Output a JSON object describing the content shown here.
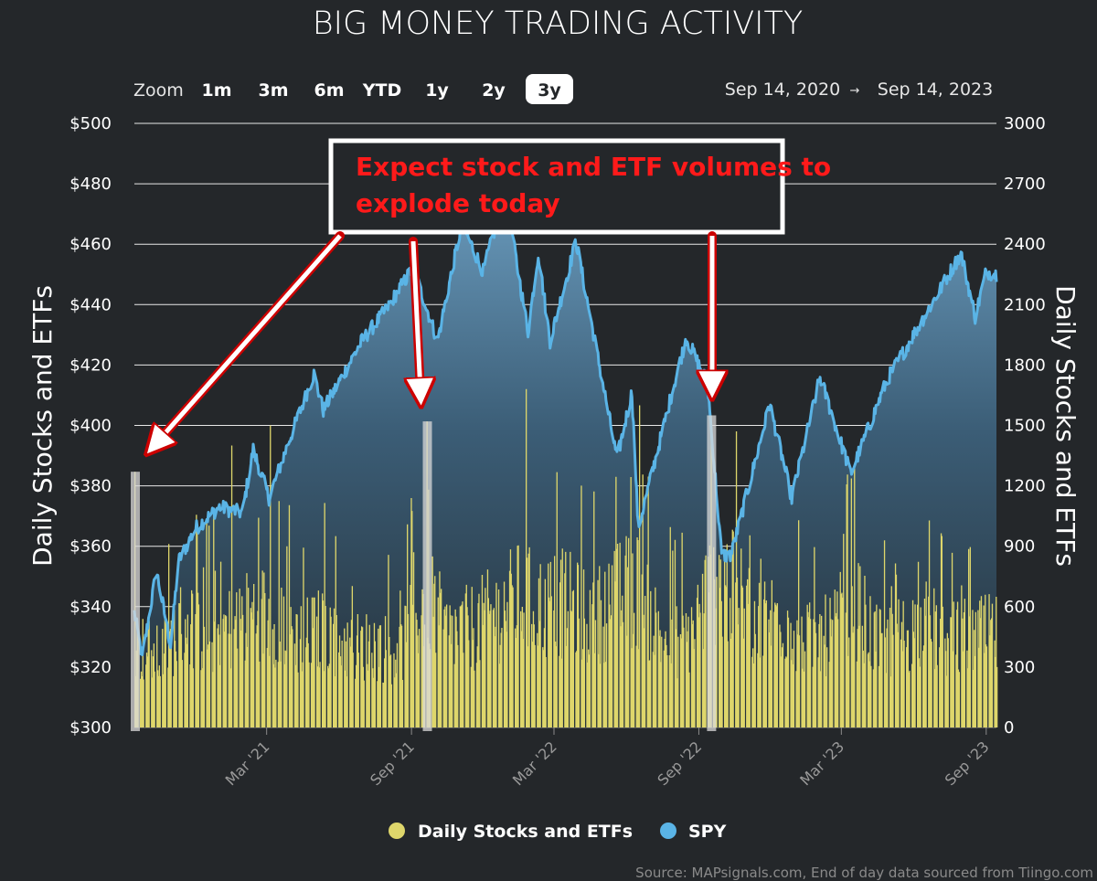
{
  "chart_data": {
    "type": "bar+line",
    "title": "BIG MONEY TRADING ACTIVITY",
    "zoom": {
      "label": "Zoom",
      "options": [
        "1m",
        "3m",
        "6m",
        "YTD",
        "1y",
        "2y",
        "3y"
      ],
      "selected": "3y"
    },
    "date_range": {
      "from": "Sep 14, 2020",
      "arrow": "→",
      "to": "Sep 14, 2023"
    },
    "y_left": {
      "label": "Daily Stocks and ETFs",
      "ticks": [
        "$300",
        "$320",
        "$340",
        "$360",
        "$380",
        "$400",
        "$420",
        "$440",
        "$460",
        "$480",
        "$500"
      ],
      "range": [
        300,
        500
      ]
    },
    "y_right": {
      "label": "Daily Stocks and ETFs",
      "ticks": [
        "0",
        "300",
        "600",
        "900",
        "1200",
        "1500",
        "1800",
        "2100",
        "2400",
        "2700",
        "3000"
      ],
      "range": [
        0,
        3000
      ]
    },
    "x_ticks": [
      "Mar '21",
      "Sep '21",
      "Mar '22",
      "Sep '22",
      "Mar '23",
      "Sep '23"
    ],
    "x_tick_dates": [
      "2021-03-01",
      "2021-09-01",
      "2022-03-01",
      "2022-09-01",
      "2023-03-01",
      "2023-09-01"
    ],
    "x_range": [
      "2020-09-14",
      "2023-09-14"
    ],
    "series": [
      {
        "name": "Daily Stocks and ETFs",
        "type": "bar",
        "axis": "right",
        "color": "#ded66b",
        "baseline_points": [
          [
            "2020-09-14",
            500
          ],
          [
            "2020-10-15",
            420
          ],
          [
            "2020-11-15",
            640
          ],
          [
            "2020-12-15",
            560
          ],
          [
            "2021-01-15",
            600
          ],
          [
            "2021-02-15",
            700
          ],
          [
            "2021-03-15",
            650
          ],
          [
            "2021-04-15",
            540
          ],
          [
            "2021-05-15",
            600
          ],
          [
            "2021-06-15",
            480
          ],
          [
            "2021-07-15",
            500
          ],
          [
            "2021-08-15",
            450
          ],
          [
            "2021-09-20",
            800
          ],
          [
            "2021-10-15",
            560
          ],
          [
            "2021-11-15",
            600
          ],
          [
            "2021-12-15",
            680
          ],
          [
            "2022-01-15",
            780
          ],
          [
            "2022-02-15",
            720
          ],
          [
            "2022-03-15",
            750
          ],
          [
            "2022-04-15",
            640
          ],
          [
            "2022-05-15",
            760
          ],
          [
            "2022-06-15",
            850
          ],
          [
            "2022-07-15",
            540
          ],
          [
            "2022-08-15",
            520
          ],
          [
            "2022-09-20",
            880
          ],
          [
            "2022-10-15",
            820
          ],
          [
            "2022-11-15",
            640
          ],
          [
            "2022-12-15",
            680
          ],
          [
            "2023-01-15",
            520
          ],
          [
            "2023-02-15",
            560
          ],
          [
            "2023-03-15",
            760
          ],
          [
            "2023-04-15",
            500
          ],
          [
            "2023-05-15",
            560
          ],
          [
            "2023-06-15",
            620
          ],
          [
            "2023-07-15",
            520
          ],
          [
            "2023-08-15",
            560
          ],
          [
            "2023-09-14",
            550
          ]
        ],
        "notable_spikes": [
          [
            "2020-09-14",
            1270
          ],
          [
            "2021-01-15",
            1400
          ],
          [
            "2021-03-05",
            1500
          ],
          [
            "2021-09-20",
            1520
          ],
          [
            "2022-01-24",
            1680
          ],
          [
            "2022-06-17",
            1600
          ],
          [
            "2022-09-16",
            1550
          ],
          [
            "2023-03-17",
            1300
          ]
        ]
      },
      {
        "name": "SPY",
        "type": "area-line",
        "axis": "left",
        "color": "#5ab4e6",
        "points": [
          [
            "2020-09-14",
            338
          ],
          [
            "2020-09-24",
            323
          ],
          [
            "2020-10-12",
            352
          ],
          [
            "2020-10-30",
            327
          ],
          [
            "2020-11-09",
            355
          ],
          [
            "2020-12-01",
            366
          ],
          [
            "2020-12-31",
            373
          ],
          [
            "2021-01-29",
            371
          ],
          [
            "2021-02-12",
            392
          ],
          [
            "2021-03-04",
            376
          ],
          [
            "2021-03-31",
            396
          ],
          [
            "2021-04-30",
            417
          ],
          [
            "2021-05-12",
            405
          ],
          [
            "2021-06-30",
            428
          ],
          [
            "2021-07-30",
            438
          ],
          [
            "2021-08-31",
            451
          ],
          [
            "2021-09-02",
            453
          ],
          [
            "2021-10-04",
            428
          ],
          [
            "2021-11-04",
            467
          ],
          [
            "2021-12-01",
            451
          ],
          [
            "2021-12-29",
            477
          ],
          [
            "2022-01-27",
            431
          ],
          [
            "2022-02-09",
            457
          ],
          [
            "2022-02-24",
            428
          ],
          [
            "2022-03-29",
            461
          ],
          [
            "2022-05-20",
            389
          ],
          [
            "2022-06-08",
            411
          ],
          [
            "2022-06-16",
            366
          ],
          [
            "2022-07-29",
            411
          ],
          [
            "2022-08-16",
            429
          ],
          [
            "2022-09-12",
            414
          ],
          [
            "2022-09-30",
            357
          ],
          [
            "2022-10-12",
            357
          ],
          [
            "2022-11-30",
            407
          ],
          [
            "2022-12-28",
            376
          ],
          [
            "2023-02-02",
            416
          ],
          [
            "2023-03-13",
            384
          ],
          [
            "2023-04-28",
            415
          ],
          [
            "2023-06-30",
            443
          ],
          [
            "2023-07-31",
            457
          ],
          [
            "2023-08-18",
            436
          ],
          [
            "2023-09-01",
            451
          ],
          [
            "2023-09-14",
            450
          ]
        ]
      }
    ],
    "annotation": {
      "text_lines": [
        "Expect stock and ETF volumes to",
        "explode today"
      ],
      "arrow_targets": [
        "2020-09-14",
        "2021-09-20",
        "2022-09-16"
      ]
    },
    "legend": {
      "position": "bottom",
      "items": [
        {
          "label": "Daily Stocks and ETFs",
          "color": "#ded66b"
        },
        {
          "label": "SPY",
          "color": "#5ab4e6"
        }
      ]
    },
    "source": "Source: MAPsignals.com, End of day data sourced from Tiingo.com",
    "grid": true
  }
}
